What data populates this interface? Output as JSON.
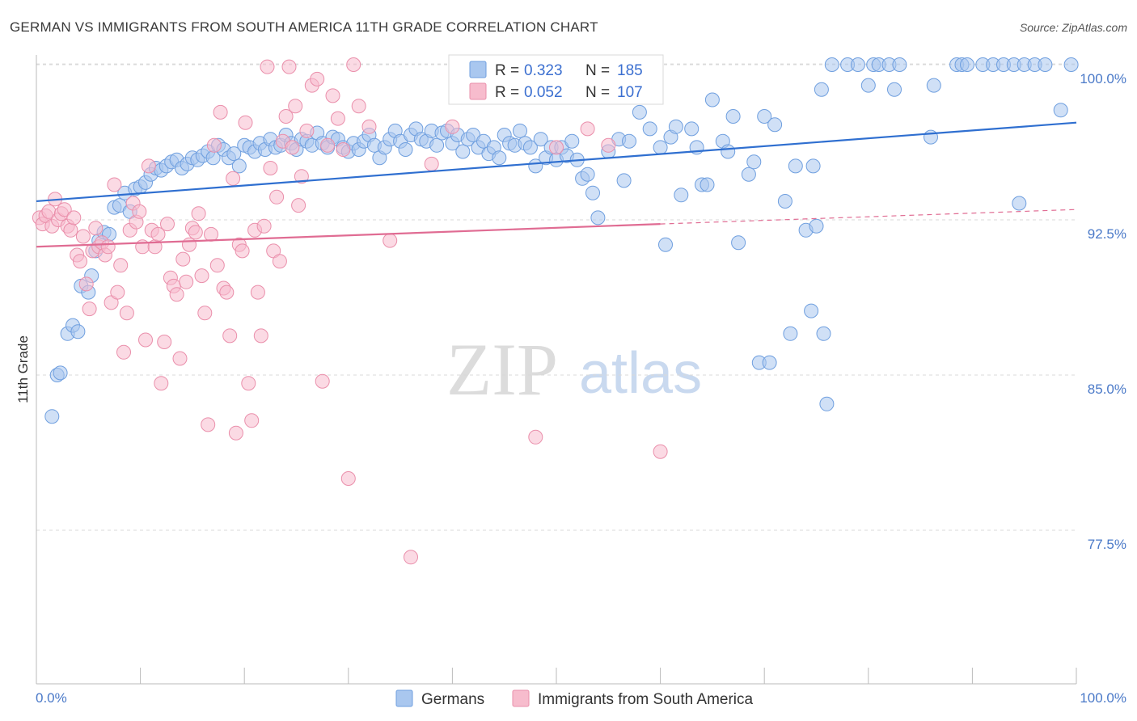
{
  "title": "GERMAN VS IMMIGRANTS FROM SOUTH AMERICA 11TH GRADE CORRELATION CHART",
  "source": "Source: ZipAtlas.com",
  "watermark": {
    "zip": "ZIP",
    "atlas": "atlas"
  },
  "legend": {
    "r_label": "R =",
    "n_label": "N =",
    "series": [
      {
        "r": "0.323",
        "n": "185"
      },
      {
        "r": "0.052",
        "n": "107"
      }
    ]
  },
  "bottom_legend": [
    "Germans",
    "Immigrants from South America"
  ],
  "colors": {
    "blue_fill": "#a9c7ef",
    "blue_stroke": "#6f9fdf",
    "blue_line": "#2f6fd0",
    "pink_fill": "#f7bccd",
    "pink_stroke": "#ea8fab",
    "pink_line": "#e06c93",
    "grid": "#d9d9d9",
    "axis_label": "#4a79c8"
  },
  "chart_data": {
    "type": "scatter",
    "title": "GERMAN VS IMMIGRANTS FROM SOUTH AMERICA 11TH GRADE CORRELATION CHART",
    "xlabel": "",
    "ylabel": "11th Grade",
    "xlim": [
      0,
      100
    ],
    "ylim": [
      70,
      100.7
    ],
    "x_tick_labels": [
      "0.0%",
      "100.0%"
    ],
    "y_ticks": [
      77.5,
      85.0,
      92.5,
      100.0
    ],
    "y_tick_labels": [
      "77.5%",
      "85.0%",
      "92.5%",
      "100.0%"
    ],
    "grid": true,
    "series": [
      {
        "name": "Germans",
        "r": 0.323,
        "n": 185,
        "trend": {
          "x": [
            0,
            100
          ],
          "y": [
            93.4,
            97.2
          ],
          "style": "solid"
        },
        "points": [
          [
            1.5,
            83.0
          ],
          [
            2,
            85.0
          ],
          [
            2.3,
            85.1
          ],
          [
            3,
            87.0
          ],
          [
            3.5,
            87.4
          ],
          [
            4,
            87.1
          ],
          [
            4.3,
            89.3
          ],
          [
            5,
            89.0
          ],
          [
            5.3,
            89.8
          ],
          [
            5.7,
            91.0
          ],
          [
            6,
            91.5
          ],
          [
            6.5,
            91.9
          ],
          [
            7,
            91.8
          ],
          [
            7.5,
            93.1
          ],
          [
            8,
            93.2
          ],
          [
            8.5,
            93.8
          ],
          [
            9,
            92.9
          ],
          [
            9.5,
            94.0
          ],
          [
            10,
            94.1
          ],
          [
            10.5,
            94.3
          ],
          [
            11,
            94.7
          ],
          [
            11.5,
            95.0
          ],
          [
            12,
            94.9
          ],
          [
            12.5,
            95.1
          ],
          [
            13,
            95.3
          ],
          [
            13.5,
            95.4
          ],
          [
            14,
            95.0
          ],
          [
            14.5,
            95.2
          ],
          [
            15,
            95.5
          ],
          [
            15.5,
            95.4
          ],
          [
            16,
            95.6
          ],
          [
            16.5,
            95.8
          ],
          [
            17,
            95.5
          ],
          [
            17.5,
            96.1
          ],
          [
            18,
            95.9
          ],
          [
            18.5,
            95.5
          ],
          [
            19,
            95.7
          ],
          [
            19.5,
            95.1
          ],
          [
            20,
            96.1
          ],
          [
            20.5,
            96.0
          ],
          [
            21,
            95.8
          ],
          [
            21.5,
            96.2
          ],
          [
            22,
            95.9
          ],
          [
            22.5,
            96.4
          ],
          [
            23,
            96.0
          ],
          [
            23.5,
            96.1
          ],
          [
            24,
            96.6
          ],
          [
            24.5,
            96.2
          ],
          [
            25,
            95.9
          ],
          [
            25.5,
            96.4
          ],
          [
            26,
            96.3
          ],
          [
            26.5,
            96.1
          ],
          [
            27,
            96.7
          ],
          [
            27.5,
            96.2
          ],
          [
            28,
            96.0
          ],
          [
            28.5,
            96.5
          ],
          [
            29,
            96.4
          ],
          [
            29.5,
            96.0
          ],
          [
            30,
            95.8
          ],
          [
            30.5,
            96.2
          ],
          [
            31,
            95.9
          ],
          [
            31.5,
            96.3
          ],
          [
            32,
            96.6
          ],
          [
            32.5,
            96.1
          ],
          [
            33,
            95.5
          ],
          [
            33.5,
            96.0
          ],
          [
            34,
            96.4
          ],
          [
            34.5,
            96.8
          ],
          [
            35,
            96.3
          ],
          [
            35.5,
            95.9
          ],
          [
            36,
            96.6
          ],
          [
            36.5,
            96.9
          ],
          [
            37,
            96.4
          ],
          [
            37.5,
            96.3
          ],
          [
            38,
            96.8
          ],
          [
            38.5,
            96.1
          ],
          [
            39,
            96.7
          ],
          [
            39.5,
            96.8
          ],
          [
            40,
            96.2
          ],
          [
            40.5,
            96.6
          ],
          [
            41,
            95.8
          ],
          [
            41.5,
            96.4
          ],
          [
            42,
            96.6
          ],
          [
            42.5,
            96.0
          ],
          [
            43,
            96.3
          ],
          [
            43.5,
            95.7
          ],
          [
            44,
            96.0
          ],
          [
            44.5,
            95.5
          ],
          [
            45,
            96.6
          ],
          [
            45.5,
            96.2
          ],
          [
            46,
            96.1
          ],
          [
            46.5,
            96.8
          ],
          [
            47,
            96.2
          ],
          [
            47.5,
            96.0
          ],
          [
            48,
            95.1
          ],
          [
            48.5,
            96.4
          ],
          [
            49,
            95.5
          ],
          [
            49.5,
            96.0
          ],
          [
            50,
            95.4
          ],
          [
            50.5,
            96.0
          ],
          [
            51,
            95.6
          ],
          [
            51.5,
            96.3
          ],
          [
            52,
            95.4
          ],
          [
            52.5,
            94.5
          ],
          [
            53,
            94.7
          ],
          [
            53.5,
            93.8
          ],
          [
            54,
            92.6
          ],
          [
            55,
            95.8
          ],
          [
            56,
            96.4
          ],
          [
            56.5,
            94.4
          ],
          [
            57,
            96.3
          ],
          [
            58,
            97.7
          ],
          [
            59,
            96.9
          ],
          [
            59.5,
            98.7
          ],
          [
            60,
            96.0
          ],
          [
            60.5,
            91.3
          ],
          [
            61,
            96.5
          ],
          [
            61.5,
            97.0
          ],
          [
            62,
            93.7
          ],
          [
            63,
            96.9
          ],
          [
            63.5,
            96.0
          ],
          [
            64,
            94.2
          ],
          [
            64.5,
            94.2
          ],
          [
            65,
            98.3
          ],
          [
            66,
            96.3
          ],
          [
            66.5,
            95.8
          ],
          [
            67,
            97.5
          ],
          [
            67.5,
            91.4
          ],
          [
            68.5,
            94.7
          ],
          [
            69,
            95.3
          ],
          [
            69.5,
            85.6
          ],
          [
            70,
            97.5
          ],
          [
            70.5,
            85.6
          ],
          [
            71,
            97.1
          ],
          [
            72,
            93.4
          ],
          [
            72.5,
            87.0
          ],
          [
            73,
            95.1
          ],
          [
            74,
            92.0
          ],
          [
            74.5,
            88.1
          ],
          [
            74.7,
            95.1
          ],
          [
            75,
            92.2
          ],
          [
            75.5,
            98.8
          ],
          [
            75.7,
            87.0
          ],
          [
            76,
            83.6
          ],
          [
            76.5,
            100.0
          ],
          [
            78,
            100.0
          ],
          [
            79,
            100.0
          ],
          [
            80,
            99.0
          ],
          [
            80.5,
            100.0
          ],
          [
            81,
            100.0
          ],
          [
            82,
            100.0
          ],
          [
            82.5,
            98.8
          ],
          [
            83,
            100.0
          ],
          [
            86,
            96.5
          ],
          [
            86.3,
            99.0
          ],
          [
            88.5,
            100.0
          ],
          [
            89,
            100.0
          ],
          [
            89.5,
            100.0
          ],
          [
            91,
            100.0
          ],
          [
            92,
            100.0
          ],
          [
            93,
            100.0
          ],
          [
            94,
            100.0
          ],
          [
            94.5,
            93.3
          ],
          [
            95,
            100.0
          ],
          [
            96,
            100.0
          ],
          [
            97,
            100.0
          ],
          [
            98.5,
            97.8
          ],
          [
            99.5,
            100.0
          ]
        ]
      },
      {
        "name": "Immigrants from South America",
        "r": 0.052,
        "n": 107,
        "trend": {
          "x": [
            0,
            60,
            100
          ],
          "y": [
            91.2,
            92.3,
            93.0
          ],
          "style": "solid-then-dashed"
        },
        "points": [
          [
            0.3,
            92.6
          ],
          [
            0.6,
            92.3
          ],
          [
            0.9,
            92.7
          ],
          [
            1.2,
            92.9
          ],
          [
            1.5,
            92.2
          ],
          [
            1.8,
            93.5
          ],
          [
            2.1,
            92.5
          ],
          [
            2.4,
            92.8
          ],
          [
            2.7,
            93.0
          ],
          [
            3.0,
            92.2
          ],
          [
            3.3,
            92.0
          ],
          [
            3.6,
            92.6
          ],
          [
            3.9,
            90.8
          ],
          [
            4.2,
            90.5
          ],
          [
            4.5,
            91.7
          ],
          [
            4.8,
            89.4
          ],
          [
            5.1,
            88.2
          ],
          [
            5.4,
            91.0
          ],
          [
            5.7,
            92.1
          ],
          [
            6.0,
            91.2
          ],
          [
            6.3,
            91.4
          ],
          [
            6.6,
            90.8
          ],
          [
            6.9,
            91.2
          ],
          [
            7.2,
            88.5
          ],
          [
            7.5,
            94.2
          ],
          [
            7.8,
            89.0
          ],
          [
            8.1,
            90.3
          ],
          [
            8.4,
            86.1
          ],
          [
            8.7,
            88.0
          ],
          [
            9.0,
            92.0
          ],
          [
            9.3,
            93.3
          ],
          [
            9.6,
            92.4
          ],
          [
            9.9,
            92.9
          ],
          [
            10.2,
            91.2
          ],
          [
            10.5,
            86.7
          ],
          [
            10.8,
            95.1
          ],
          [
            11.1,
            92.0
          ],
          [
            11.4,
            91.2
          ],
          [
            11.7,
            91.8
          ],
          [
            12.0,
            84.6
          ],
          [
            12.3,
            86.6
          ],
          [
            12.6,
            92.3
          ],
          [
            12.9,
            89.7
          ],
          [
            13.2,
            89.3
          ],
          [
            13.5,
            88.9
          ],
          [
            13.8,
            85.8
          ],
          [
            14.1,
            90.6
          ],
          [
            14.4,
            89.5
          ],
          [
            14.7,
            91.3
          ],
          [
            15.0,
            92.1
          ],
          [
            15.3,
            91.9
          ],
          [
            15.6,
            92.8
          ],
          [
            15.9,
            89.8
          ],
          [
            16.2,
            88.0
          ],
          [
            16.5,
            82.6
          ],
          [
            16.8,
            91.8
          ],
          [
            17.1,
            96.1
          ],
          [
            17.4,
            90.3
          ],
          [
            17.7,
            97.7
          ],
          [
            18.0,
            89.2
          ],
          [
            18.3,
            89.0
          ],
          [
            18.6,
            86.9
          ],
          [
            18.9,
            94.5
          ],
          [
            19.2,
            82.2
          ],
          [
            19.5,
            91.3
          ],
          [
            19.8,
            91.0
          ],
          [
            20.1,
            97.2
          ],
          [
            20.4,
            84.6
          ],
          [
            20.7,
            82.8
          ],
          [
            21.0,
            92.0
          ],
          [
            21.3,
            89.0
          ],
          [
            21.6,
            86.9
          ],
          [
            21.9,
            92.2
          ],
          [
            22.2,
            99.9
          ],
          [
            22.5,
            95.0
          ],
          [
            22.8,
            91.0
          ],
          [
            23.1,
            93.6
          ],
          [
            23.4,
            90.5
          ],
          [
            23.7,
            96.3
          ],
          [
            24.0,
            97.5
          ],
          [
            24.3,
            99.9
          ],
          [
            24.6,
            96.0
          ],
          [
            24.9,
            98.0
          ],
          [
            25.2,
            93.2
          ],
          [
            25.5,
            94.6
          ],
          [
            26.0,
            96.8
          ],
          [
            26.5,
            99.0
          ],
          [
            27.0,
            99.3
          ],
          [
            27.5,
            84.7
          ],
          [
            28.0,
            96.1
          ],
          [
            28.5,
            98.5
          ],
          [
            29.0,
            97.4
          ],
          [
            29.5,
            95.9
          ],
          [
            30.0,
            80.0
          ],
          [
            30.5,
            100.0
          ],
          [
            31.0,
            98.0
          ],
          [
            32.0,
            97.0
          ],
          [
            34.0,
            91.5
          ],
          [
            36.0,
            76.2
          ],
          [
            38.0,
            95.2
          ],
          [
            40.0,
            97.0
          ],
          [
            48.0,
            82.0
          ],
          [
            50.0,
            96.0
          ],
          [
            53.0,
            96.9
          ],
          [
            55.0,
            96.1
          ],
          [
            60.0,
            81.3
          ]
        ]
      }
    ]
  }
}
